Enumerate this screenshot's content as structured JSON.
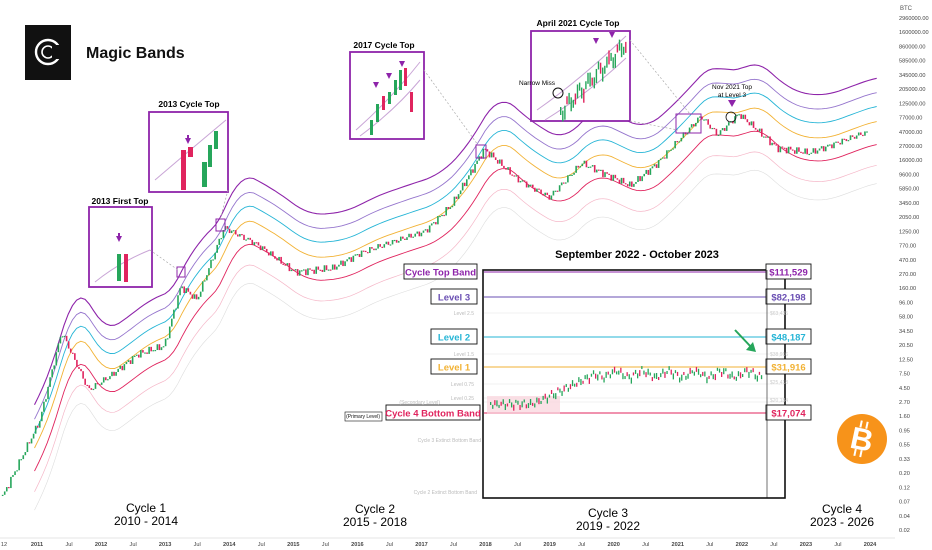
{
  "brand": {
    "name": "Magic Bands",
    "logo_letters": "C"
  },
  "currency_label": "BTC",
  "y_ticks": [
    "2960000.00",
    "1600000.00",
    "860000.00",
    "585000.00",
    "345000.00",
    "205000.00",
    "125000.00",
    "77000.00",
    "47000.00",
    "27000.00",
    "16000.00",
    "9600.00",
    "5850.00",
    "3450.00",
    "2050.00",
    "1250.00",
    "770.00",
    "470.00",
    "270.00",
    "160.00",
    "96.00",
    "58.00",
    "34.50",
    "20.50",
    "12.50",
    "7.50",
    "4.50",
    "2.70",
    "1.60",
    "0.95",
    "0.55",
    "0.33",
    "0.20",
    "0.12",
    "0.07",
    "0.04",
    "0.02"
  ],
  "x_ticks": [
    "12",
    "2011",
    "Jul",
    "2012",
    "Jul",
    "2013",
    "Jul",
    "2014",
    "Jul",
    "2015",
    "Jul",
    "2016",
    "Jul",
    "2017",
    "Jul",
    "2018",
    "Jul",
    "2019",
    "Jul",
    "2020",
    "Jul",
    "2021",
    "Jul",
    "2022",
    "Jul",
    "2023",
    "Jul",
    "2024"
  ],
  "cycles": [
    {
      "name": "Cycle 1",
      "years": "2010 - 2014"
    },
    {
      "name": "Cycle 2",
      "years": "2015 - 2018"
    },
    {
      "name": "Cycle 3",
      "years": "2019 - 2022"
    },
    {
      "name": "Cycle 4",
      "years": "2023 - 2026"
    }
  ],
  "insets": {
    "first_top": "2013 First Top",
    "cycle_top_2013": "2013 Cycle Top",
    "cycle_top_2017": "2017 Cycle Top",
    "april_2021": "April 2021 Cycle Top",
    "narrow_miss": "Narrow Miss",
    "nov_2021_line1": "Nov 2021 Top",
    "nov_2021_line2": "at Level 3"
  },
  "zoom_panel": {
    "title": "September 2022 - October 2023",
    "bands": [
      {
        "label": "Cycle Top Band",
        "price": "$111,529",
        "color": "#8e24aa"
      },
      {
        "label": "Level 3",
        "price": "$82,198",
        "color": "#6a4fb3"
      },
      {
        "label": "Level 2",
        "price": "$48,187",
        "color": "#26b5d6"
      },
      {
        "label": "Level 1",
        "price": "$31,916",
        "color": "#f2b234"
      },
      {
        "label": "Cycle 4 Bottom Band",
        "price": "$17,074",
        "color": "#e0245e"
      }
    ],
    "faint_labels": [
      "Level 2.5",
      "Level 1.5",
      "Level 0.75",
      "(Secondary Level)",
      "Level 0.25",
      "Cycle 3 Extinct Bottom Band",
      "Cycle 2 Extinct Bottom Band"
    ],
    "faint_prices": [
      "$63,435",
      "$38,916",
      "$25,418",
      "$20,184"
    ],
    "primary_level": "(Primary Level)"
  },
  "chart_data": {
    "type": "line",
    "title": "Magic Bands",
    "scale": "log",
    "xlim": [
      "2010-07",
      "2024-01"
    ],
    "ylim": [
      0.02,
      2960000
    ],
    "ylabel": "BTC",
    "series": [
      {
        "color": "#26a65b",
        "x": [
          "2010-07",
          "2010-10",
          "2011-02",
          "2011-06",
          "2011-11",
          "2012-03",
          "2012-08",
          "2013-01",
          "2013-04",
          "2013-07",
          "2013-12",
          "2014-06",
          "2015-01",
          "2015-08",
          "2016-01",
          "2016-07",
          "2017-01",
          "2017-06",
          "2017-12",
          "2018-06",
          "2018-12",
          "2019-06",
          "2020-03",
          "2020-08",
          "2021-04",
          "2021-07",
          "2021-11",
          "2022-06",
          "2022-12",
          "2023-10"
        ],
        "y": [
          0.06,
          0.2,
          1,
          25,
          3,
          5,
          11,
          15,
          130,
          80,
          1100,
          600,
          220,
          250,
          430,
          650,
          950,
          2500,
          19000,
          6500,
          3300,
          11500,
          5000,
          11500,
          63000,
          32000,
          68000,
          20000,
          16500,
          34000
        ]
      }
    ]
  }
}
